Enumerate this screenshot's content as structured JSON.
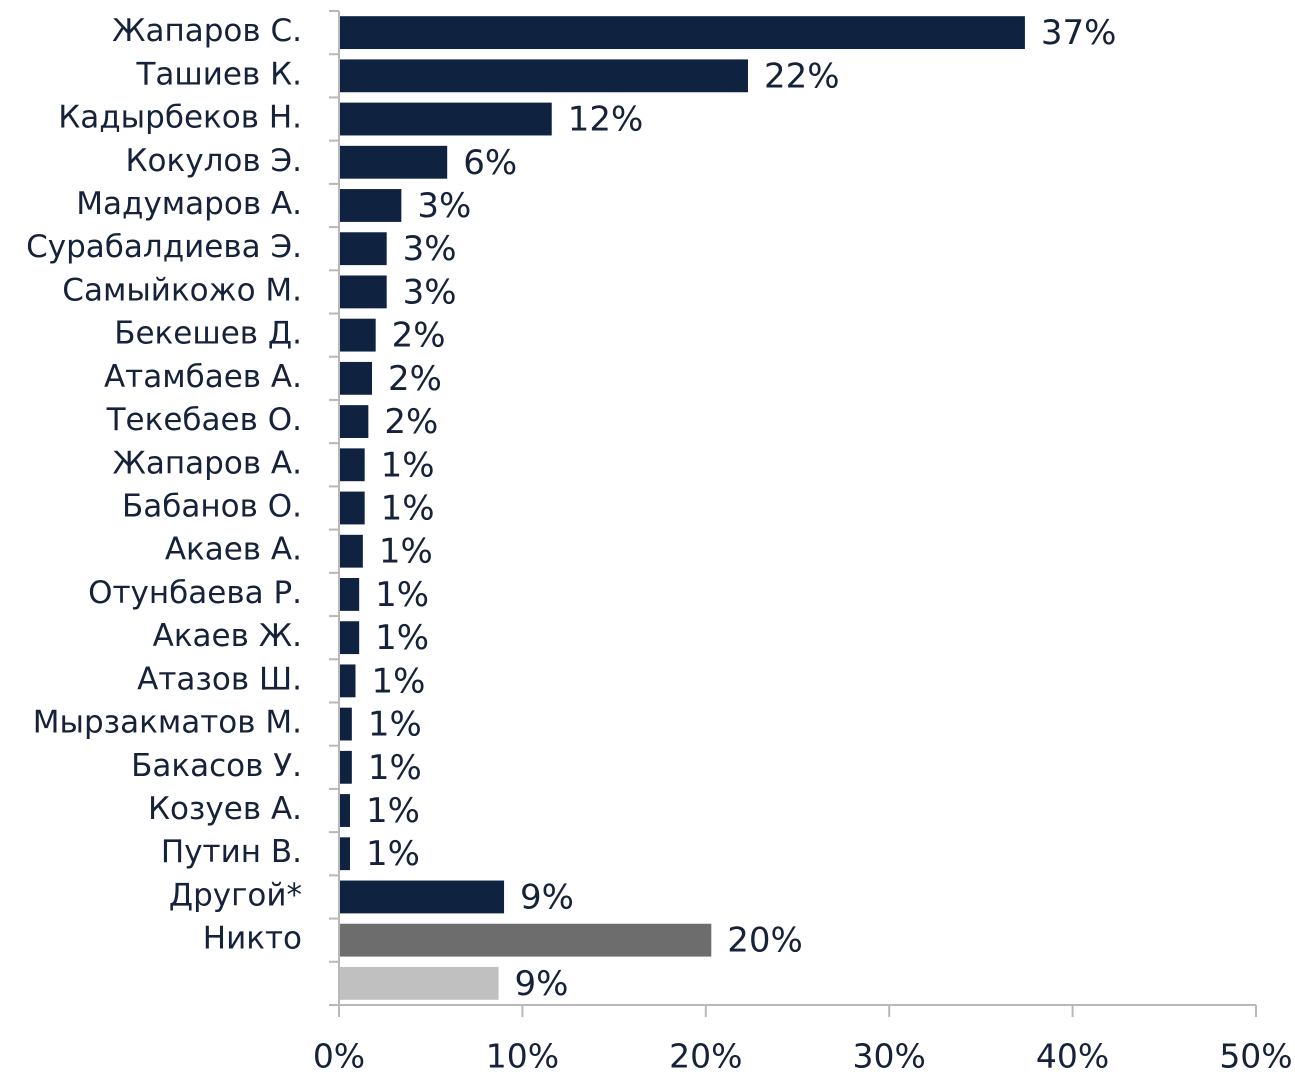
{
  "chart_data": {
    "type": "barh",
    "categories": [
      "Жапаров С.",
      "Ташиев К.",
      "Кадырбеков Н.",
      "Кокулов Э.",
      "Мадумаров А.",
      "Сурабалдиева Э.",
      "Самыйкожо М.",
      "Бекешев Д.",
      "Атамбаев А.",
      "Текебаев О.",
      "Жапаров А.",
      "Бабанов О.",
      "Акаев А.",
      "Отунбаева Р.",
      "Акаев Ж.",
      "Атазов Ш.",
      "Мырзакматов М.",
      "Бакасов У.",
      "Козуев А.",
      "Путин В.",
      "Другой*",
      "Никто",
      null
    ],
    "values": [
      37.4,
      22.3,
      11.6,
      5.9,
      3.4,
      2.6,
      2.6,
      2.0,
      1.8,
      1.6,
      1.4,
      1.4,
      1.3,
      1.1,
      1.1,
      0.9,
      0.7,
      0.7,
      0.6,
      0.6,
      9.0,
      20.3,
      8.7
    ],
    "value_labels": [
      "37%",
      "22%",
      "12%",
      "6%",
      "3%",
      "3%",
      "3%",
      "2%",
      "2%",
      "2%",
      "1%",
      "1%",
      "1%",
      "1%",
      "1%",
      "1%",
      "1%",
      "1%",
      "1%",
      "1%",
      "9%",
      "20%",
      "9%"
    ],
    "colors": [
      "#0f2340",
      "#0f2340",
      "#0f2340",
      "#0f2340",
      "#0f2340",
      "#0f2340",
      "#0f2340",
      "#0f2340",
      "#0f2340",
      "#0f2340",
      "#0f2340",
      "#0f2340",
      "#0f2340",
      "#0f2340",
      "#0f2340",
      "#0f2340",
      "#0f2340",
      "#0f2340",
      "#0f2340",
      "#0f2340",
      "#0f2340",
      "#6d6d6d",
      "#c0c0c0"
    ],
    "xlim": [
      0,
      50
    ],
    "xticks": [
      {
        "value": 0,
        "label": "0%"
      },
      {
        "value": 10,
        "label": "10%"
      },
      {
        "value": 20,
        "label": "20%"
      },
      {
        "value": 30,
        "label": "30%"
      },
      {
        "value": 40,
        "label": "40%"
      },
      {
        "value": 50,
        "label": "50%"
      }
    ]
  }
}
